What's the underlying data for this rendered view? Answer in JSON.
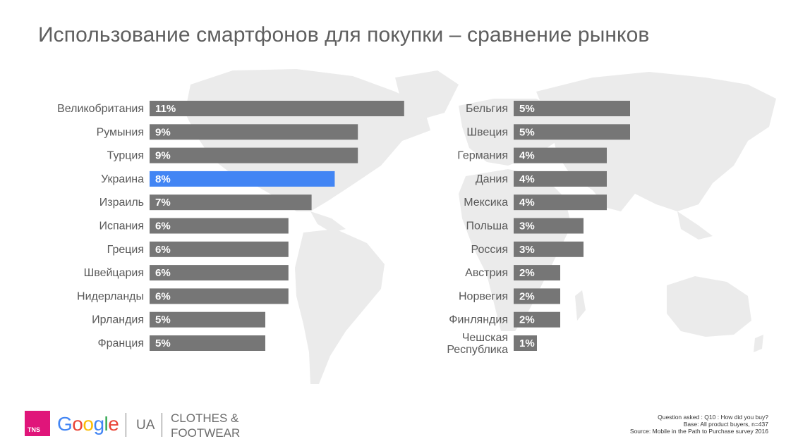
{
  "title": "Использование смартфонов для покупки – сравнение рынков",
  "colors": {
    "bar": "#767676",
    "highlight": "#4285f4",
    "map": "#ebebeb"
  },
  "chart_data": [
    {
      "type": "bar",
      "orientation": "horizontal",
      "categories": [
        "Великобритания",
        "Румыния",
        "Турция",
        "Украина",
        "Израиль",
        "Испания",
        "Греция",
        "Швейцария",
        "Нидерланды",
        "Ирландия",
        "Франция"
      ],
      "values": [
        11,
        9,
        9,
        8,
        7,
        6,
        6,
        6,
        6,
        5,
        5
      ],
      "labels": [
        "11%",
        "9%",
        "9%",
        "8%",
        "7%",
        "6%",
        "6%",
        "6%",
        "6%",
        "5%",
        "5%"
      ],
      "highlight": "Украина",
      "unit": "%"
    },
    {
      "type": "bar",
      "orientation": "horizontal",
      "categories": [
        "Бельгия",
        "Швеция",
        "Германия",
        "Дания",
        "Мексика",
        "Польша",
        "Россия",
        "Австрия",
        "Норвегия",
        "Финляндия",
        "Чешская Республика"
      ],
      "values": [
        5,
        5,
        4,
        4,
        4,
        3,
        3,
        2,
        2,
        2,
        1
      ],
      "labels": [
        "5%",
        "5%",
        "4%",
        "4%",
        "4%",
        "3%",
        "3%",
        "2%",
        "2%",
        "2%",
        "1%"
      ],
      "unit": "%"
    }
  ],
  "footer": {
    "tns": "TNS",
    "google": [
      "G",
      "o",
      "o",
      "g",
      "l",
      "e"
    ],
    "google_colors": [
      "#4285f4",
      "#ea4335",
      "#fbbc05",
      "#4285f4",
      "#34a853",
      "#ea4335"
    ],
    "ua": "UA",
    "category_line1": "CLOTHES &",
    "category_line2": "FOOTWEAR",
    "question": "Question asked : Q10 : How did you buy?",
    "base": "Base: All product buyers, n=437",
    "source": "Source: Mobile in the Path to Purchase survey 2016"
  }
}
